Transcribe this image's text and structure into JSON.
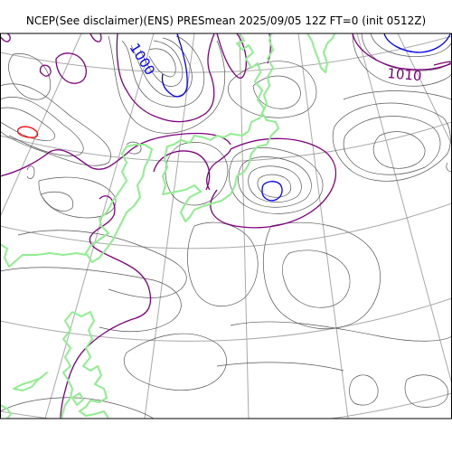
{
  "title": "NCEP(See disclaimer)(ENS) PRESmean 2025/09/05 12Z FT=0 (init 0512Z)",
  "contour_labels": [
    {
      "text": "1000",
      "color": "#0000ff"
    },
    {
      "text": "1010",
      "color": "#800080"
    }
  ],
  "colors": {
    "coastline": "#90ee90",
    "graticule": "#a9a9a9",
    "thin_isobar": "#555555",
    "isobar_1010": "#800080",
    "isobar_1000": "#0000ff",
    "isobar_1020": "#ff0000",
    "frame": "#000000"
  }
}
